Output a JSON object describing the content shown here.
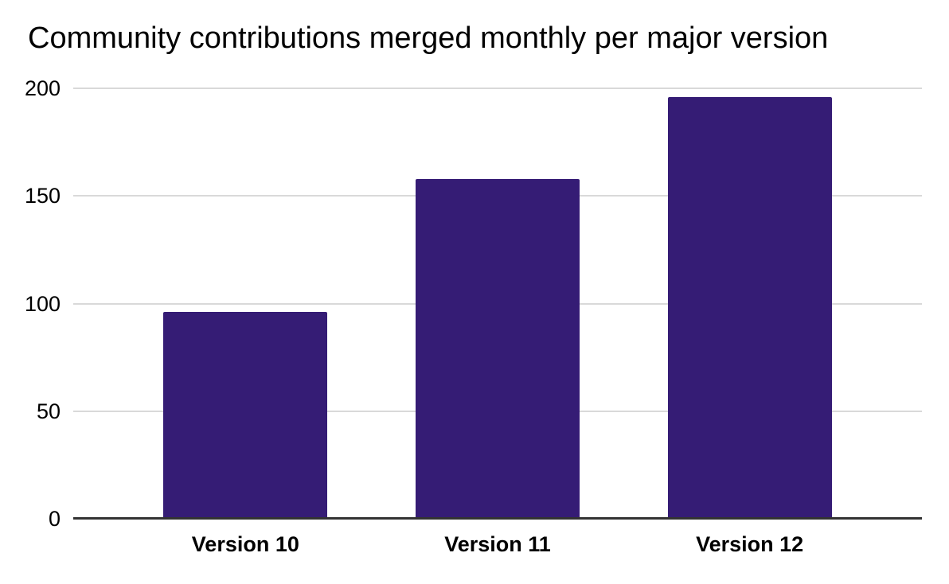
{
  "chart_data": {
    "type": "bar",
    "title": "Community contributions merged monthly per major version",
    "categories": [
      "Version 10",
      "Version 11",
      "Version 12"
    ],
    "values": [
      96,
      158,
      196
    ],
    "xlabel": "",
    "ylabel": "",
    "ylim": [
      0,
      200
    ],
    "yticks": [
      0,
      50,
      100,
      150,
      200
    ],
    "grid": true,
    "legend_position": "none",
    "colors": {
      "bar": "#351c75",
      "gridline": "#d9d9d9",
      "axis_line": "#333333",
      "text": "#000000",
      "background": "#ffffff"
    }
  }
}
